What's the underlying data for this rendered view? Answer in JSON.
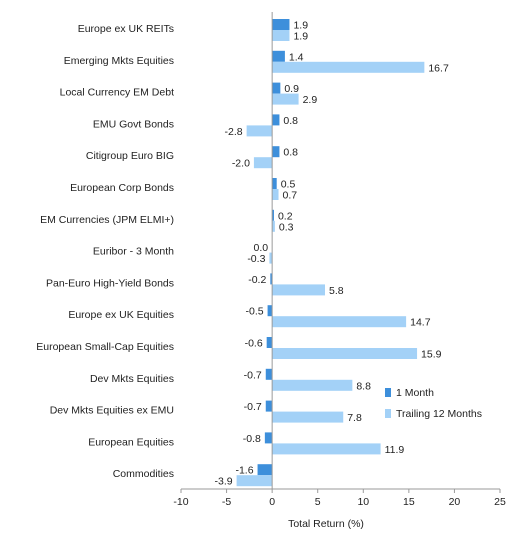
{
  "chart_data": {
    "type": "bar",
    "orientation": "horizontal",
    "title": "",
    "xlabel": "Total Return (%)",
    "ylabel": "",
    "xlim": [
      -10,
      25
    ],
    "x_ticks": [
      -10,
      -5,
      0,
      5,
      10,
      15,
      20,
      25
    ],
    "grid": false,
    "legend_position": "lower-right",
    "categories": [
      "Europe ex UK REITs",
      "Emerging Mkts Equities",
      "Local Currency EM Debt",
      "EMU Govt Bonds",
      "Citigroup Euro BIG",
      "European Corp Bonds",
      "EM Currencies (JPM ELMI+)",
      "Euribor - 3 Month",
      "Pan-Euro High-Yield Bonds",
      "Europe ex UK Equities",
      "European Small-Cap Equities",
      "Dev Mkts Equities",
      "Dev Mkts Equities ex EMU",
      "European Equities",
      "Commodities"
    ],
    "series": [
      {
        "name": "1 Month",
        "color": "#3d8fdb",
        "values": [
          1.9,
          1.4,
          0.9,
          0.8,
          0.8,
          0.5,
          0.2,
          0.0,
          -0.2,
          -0.5,
          -0.6,
          -0.7,
          -0.7,
          -0.8,
          -1.6
        ],
        "labels": [
          "1.9",
          "1.4",
          "0.9",
          "0.8",
          "0.8",
          "0.5",
          "0.2",
          "0.0",
          "-0.2",
          "-0.5",
          "-0.6",
          "-0.7",
          "-0.7",
          "-0.8",
          "-1.6"
        ]
      },
      {
        "name": "Trailing 12 Months",
        "color": "#a3d1f7",
        "values": [
          1.9,
          16.7,
          2.9,
          -2.8,
          -2.0,
          0.7,
          0.3,
          -0.3,
          5.8,
          14.7,
          15.9,
          8.8,
          7.8,
          11.9,
          -3.9
        ],
        "labels": [
          "1.9",
          "16.7",
          "2.9",
          "-2.8",
          "-2.0",
          "0.7",
          "0.3",
          "-0.3",
          "5.8",
          "14.7",
          "15.9",
          "8.8",
          "7.8",
          "11.9",
          "-3.9"
        ]
      }
    ]
  }
}
